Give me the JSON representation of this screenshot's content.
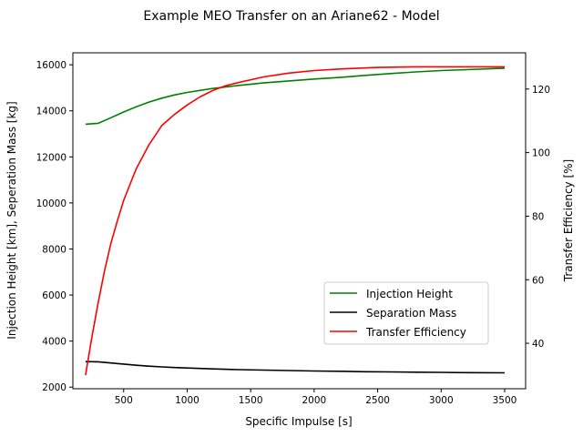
{
  "chart_data": {
    "type": "line",
    "title": "Example MEO Transfer on an Ariane62 - Model",
    "xlabel": "Specific Impulse [s]",
    "ylabel_left": "Injection Height [km], Seperation Mass [kg]",
    "ylabel_right": "Transfer Efficiency [%]",
    "xlim": [
      100,
      3665
    ],
    "ylim_left": [
      1930,
      16520
    ],
    "ylim_right": [
      25.7,
      131.4
    ],
    "x_ticks": [
      500,
      1000,
      1500,
      2000,
      2500,
      3000,
      3500
    ],
    "y_ticks_left": [
      2000,
      4000,
      6000,
      8000,
      10000,
      12000,
      14000,
      16000
    ],
    "y_ticks_right": [
      40,
      60,
      80,
      100,
      120
    ],
    "grid": false,
    "legend_position": "lower-right",
    "series": [
      {
        "name": "Injection Height",
        "axis": "left",
        "color": "#008000",
        "x": [
          200,
          300,
          400,
          500,
          600,
          700,
          800,
          900,
          1000,
          1200,
          1400,
          1600,
          1800,
          2000,
          2200,
          2400,
          2600,
          2800,
          3000,
          3200,
          3500
        ],
        "y": [
          13420,
          13460,
          13700,
          13950,
          14180,
          14380,
          14550,
          14690,
          14800,
          14970,
          15100,
          15210,
          15300,
          15380,
          15450,
          15540,
          15620,
          15690,
          15750,
          15790,
          15850
        ]
      },
      {
        "name": "Separation Mass",
        "axis": "left",
        "color": "#000000",
        "x": [
          200,
          300,
          400,
          500,
          600,
          700,
          800,
          900,
          1000,
          1200,
          1400,
          1600,
          1800,
          2000,
          2200,
          2400,
          2600,
          2800,
          3000,
          3200,
          3500
        ],
        "y": [
          3110,
          3100,
          3050,
          3000,
          2950,
          2910,
          2880,
          2850,
          2830,
          2790,
          2760,
          2740,
          2720,
          2700,
          2690,
          2670,
          2660,
          2650,
          2640,
          2630,
          2620
        ]
      },
      {
        "name": "Transfer Efficiency",
        "axis": "right",
        "color": "#ff0000",
        "x": [
          200,
          250,
          300,
          350,
          400,
          450,
          500,
          550,
          600,
          700,
          800,
          900,
          1000,
          1100,
          1200,
          1300,
          1400,
          1600,
          1800,
          2000,
          2200,
          2500,
          2800,
          3000,
          3200,
          3500
        ],
        "y": [
          30,
          42,
          53,
          63,
          71.5,
          78.5,
          85,
          90,
          95,
          102.5,
          108.5,
          112,
          115,
          117.5,
          119.5,
          121,
          122,
          123.8,
          125,
          125.8,
          126.3,
          126.8,
          127,
          127,
          127,
          127
        ]
      }
    ]
  }
}
